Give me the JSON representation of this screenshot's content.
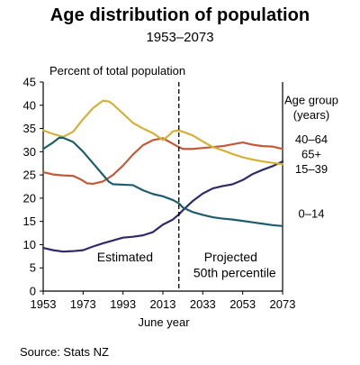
{
  "title": "Age distribution of population",
  "subtitle": "1953–2073",
  "source": "Source: Stats NZ",
  "chart_data": {
    "type": "line",
    "ylabel": "Percent of total population",
    "xlabel": "June year",
    "xlim": [
      1953,
      2073
    ],
    "ylim": [
      0,
      45
    ],
    "xticks": [
      1953,
      1973,
      1993,
      2013,
      2033,
      2053,
      2073
    ],
    "yticks": [
      0,
      5,
      10,
      15,
      20,
      25,
      30,
      35,
      40,
      45
    ],
    "grid": false,
    "divider_x": 2021,
    "region_labels": {
      "estimated": "Estimated",
      "projected_line1": "Projected",
      "projected_line2": "50th percentile"
    },
    "legend": {
      "title_line1": "Age group",
      "title_line2": "(years)"
    },
    "series": [
      {
        "name": "40–64",
        "color": "#c05a3a",
        "points": [
          [
            1953,
            25.6
          ],
          [
            1958,
            25.1
          ],
          [
            1963,
            24.9
          ],
          [
            1968,
            24.8
          ],
          [
            1972,
            24.0
          ],
          [
            1975,
            23.2
          ],
          [
            1978,
            23.1
          ],
          [
            1983,
            23.6
          ],
          [
            1988,
            25.0
          ],
          [
            1993,
            27.0
          ],
          [
            1998,
            29.4
          ],
          [
            2003,
            31.4
          ],
          [
            2008,
            32.5
          ],
          [
            2013,
            32.9
          ],
          [
            2018,
            31.7
          ],
          [
            2021,
            31.0
          ],
          [
            2023,
            30.6
          ],
          [
            2028,
            30.6
          ],
          [
            2033,
            30.8
          ],
          [
            2038,
            31.0
          ],
          [
            2043,
            31.2
          ],
          [
            2048,
            31.6
          ],
          [
            2053,
            32.0
          ],
          [
            2058,
            31.5
          ],
          [
            2063,
            31.2
          ],
          [
            2068,
            31.1
          ],
          [
            2073,
            30.6
          ]
        ]
      },
      {
        "name": "65+",
        "color": "#2e2a6b",
        "points": [
          [
            1953,
            9.3
          ],
          [
            1958,
            8.8
          ],
          [
            1963,
            8.5
          ],
          [
            1968,
            8.6
          ],
          [
            1973,
            8.8
          ],
          [
            1978,
            9.6
          ],
          [
            1983,
            10.3
          ],
          [
            1988,
            10.9
          ],
          [
            1993,
            11.5
          ],
          [
            1998,
            11.7
          ],
          [
            2003,
            12.0
          ],
          [
            2008,
            12.7
          ],
          [
            2013,
            14.3
          ],
          [
            2018,
            15.4
          ],
          [
            2021,
            16.5
          ],
          [
            2023,
            17.4
          ],
          [
            2028,
            19.4
          ],
          [
            2033,
            21.0
          ],
          [
            2038,
            22.1
          ],
          [
            2043,
            22.6
          ],
          [
            2048,
            23.0
          ],
          [
            2053,
            23.9
          ],
          [
            2058,
            25.2
          ],
          [
            2063,
            26.1
          ],
          [
            2068,
            26.9
          ],
          [
            2073,
            27.9
          ]
        ]
      },
      {
        "name": "15–39",
        "color": "#d4b13a",
        "points": [
          [
            1953,
            34.6
          ],
          [
            1958,
            33.8
          ],
          [
            1963,
            33.2
          ],
          [
            1968,
            34.3
          ],
          [
            1973,
            37.0
          ],
          [
            1978,
            39.4
          ],
          [
            1983,
            41.0
          ],
          [
            1986,
            40.8
          ],
          [
            1988,
            40.2
          ],
          [
            1993,
            38.2
          ],
          [
            1998,
            36.2
          ],
          [
            2003,
            35.0
          ],
          [
            2008,
            34.0
          ],
          [
            2013,
            32.5
          ],
          [
            2016,
            33.5
          ],
          [
            2018,
            34.4
          ],
          [
            2021,
            34.6
          ],
          [
            2023,
            34.3
          ],
          [
            2028,
            33.5
          ],
          [
            2033,
            32.2
          ],
          [
            2038,
            31.0
          ],
          [
            2043,
            30.3
          ],
          [
            2048,
            29.5
          ],
          [
            2053,
            28.8
          ],
          [
            2058,
            28.3
          ],
          [
            2063,
            27.9
          ],
          [
            2068,
            27.6
          ],
          [
            2073,
            27.3
          ]
        ]
      },
      {
        "name": "0–14",
        "color": "#1e5d6b",
        "points": [
          [
            1953,
            30.6
          ],
          [
            1958,
            32.0
          ],
          [
            1961,
            33.0
          ],
          [
            1963,
            33.0
          ],
          [
            1968,
            32.1
          ],
          [
            1973,
            30.0
          ],
          [
            1978,
            27.5
          ],
          [
            1983,
            25.0
          ],
          [
            1986,
            23.5
          ],
          [
            1988,
            23.0
          ],
          [
            1993,
            22.9
          ],
          [
            1998,
            22.8
          ],
          [
            2003,
            21.7
          ],
          [
            2008,
            20.9
          ],
          [
            2013,
            20.4
          ],
          [
            2018,
            19.6
          ],
          [
            2021,
            18.9
          ],
          [
            2023,
            18.0
          ],
          [
            2028,
            17.0
          ],
          [
            2033,
            16.4
          ],
          [
            2038,
            15.9
          ],
          [
            2043,
            15.6
          ],
          [
            2048,
            15.4
          ],
          [
            2053,
            15.1
          ],
          [
            2058,
            14.8
          ],
          [
            2063,
            14.5
          ],
          [
            2068,
            14.2
          ],
          [
            2073,
            14.0
          ]
        ]
      }
    ],
    "series_labels": [
      {
        "text": "40–64",
        "color": "#000000"
      },
      {
        "text": "65+",
        "color": "#000000"
      },
      {
        "text": "15–39",
        "color": "#000000"
      },
      {
        "text": "0–14",
        "color": "#000000"
      }
    ]
  }
}
